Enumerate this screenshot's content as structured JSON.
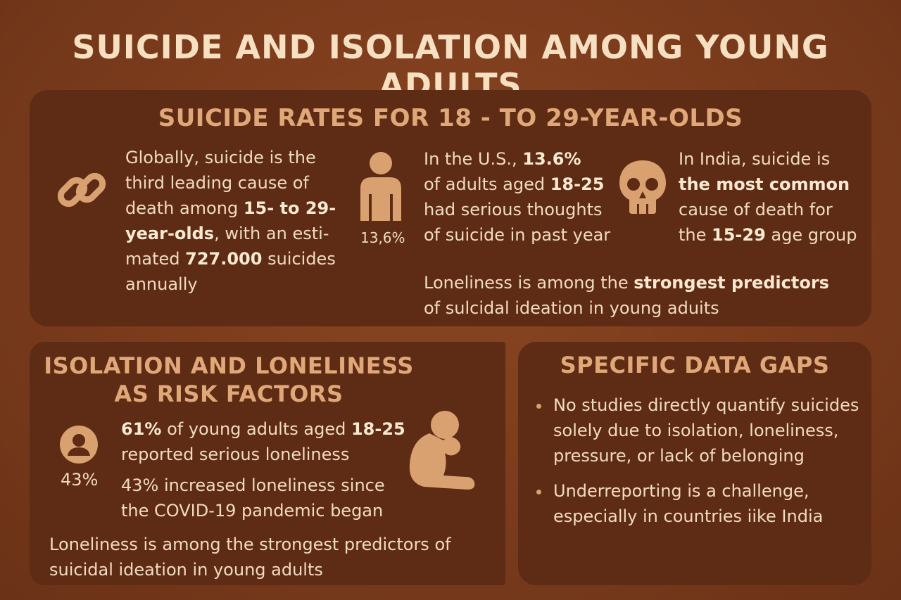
{
  "title": "SUICIDE AND ISOLATION AMONG YOUNG ADULTS",
  "top_panel": {
    "heading": "SUICIDE RATES FOR 18 - TO 29-YEAR-OLDS",
    "global": {
      "icon": "chain-link-icon",
      "l1": "Globally, suicide is the",
      "l2": "third leading cause of",
      "l3a": "death among ",
      "l3b": "15- to 29-",
      "l4a": "year-olds",
      "l4b": ", with an esti-",
      "l5a": "mated ",
      "l5b": "727.000",
      "l5c": " suicides",
      "l6": "annually"
    },
    "us": {
      "icon": "person-icon",
      "icon_caption": "13,6%",
      "l1a": "In the U.S., ",
      "l1b": "13.6%",
      "l2a": "of adults aged ",
      "l2b": "18-25",
      "l3": "had serious thoughts",
      "l4": "of suicide in past year"
    },
    "india": {
      "icon": "skull-icon",
      "l1": "In India, suicide is",
      "l2": "the most common",
      "l3": "cause of death for",
      "l4a": "the ",
      "l4b": "15-29",
      "l4c": " age group"
    },
    "note": {
      "l1a": "Loneliness is among the ",
      "l1b": "strongest predictors",
      "l2": "of sulcidal ideation in young aduits"
    }
  },
  "isolation_panel": {
    "heading_l1": "ISOLATION AND LONELINESS",
    "heading_l2": "AS RISK FACTORS",
    "icon": "user-circle-icon",
    "icon_caption": "43%",
    "fact1_a": "61%",
    "fact1_b": " of young adults aged ",
    "fact1_c": "18-25",
    "fact1_l2": "reported serious loneliness",
    "fact2_l1": "43% increased loneliness since",
    "fact2_l2": "the COVID-19 pandemic began",
    "figure": "sitting-head-in-hands-icon",
    "note_l1": "Loneliness is among the strongest predictors of",
    "note_l2": "suicidal ideation in young adults"
  },
  "gaps_panel": {
    "heading": "SPECIFIC DATA GAPS",
    "b1_l1": "No studies directly quantify suicides",
    "b1_l2": "solely due to isolation, loneliness,",
    "b1_l3": "pressure, or lack of belonging",
    "b2_l1": "Underreporting is a challenge,",
    "b2_l2": "especially in countries iike India"
  },
  "colors": {
    "background": "#7a3b1c",
    "panel": "#5e2b14",
    "heading": "#e0a778",
    "icon": "#d9a070",
    "text": "#f1dbc1"
  }
}
